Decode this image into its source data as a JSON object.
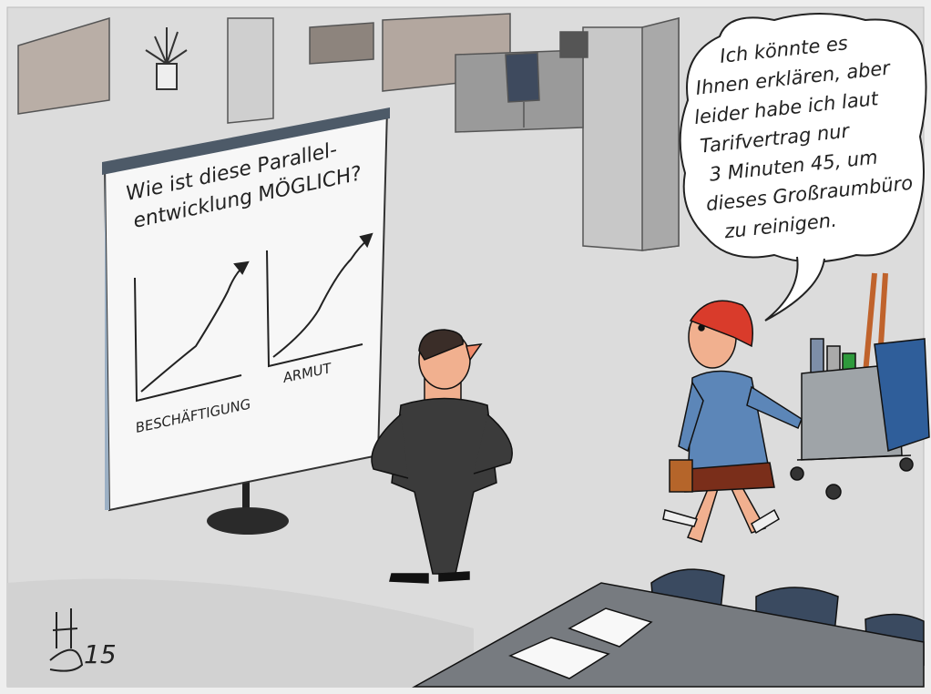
{
  "flipchart": {
    "title_lines": [
      "Wie ist diese Parallel-",
      "entwicklung MÖGLICH?"
    ],
    "charts": [
      {
        "label": "BESCHÄFTIGUNG"
      },
      {
        "label": "ARMUT"
      }
    ]
  },
  "speech_bubble": {
    "lines": [
      "Ich könnte es",
      "Ihnen erklären, aber",
      "leider habe ich laut",
      "Tarifvertrag nur",
      "3 Minuten 45, um",
      "dieses Großraumbüro",
      "zu reinigen."
    ]
  },
  "signature": "15"
}
